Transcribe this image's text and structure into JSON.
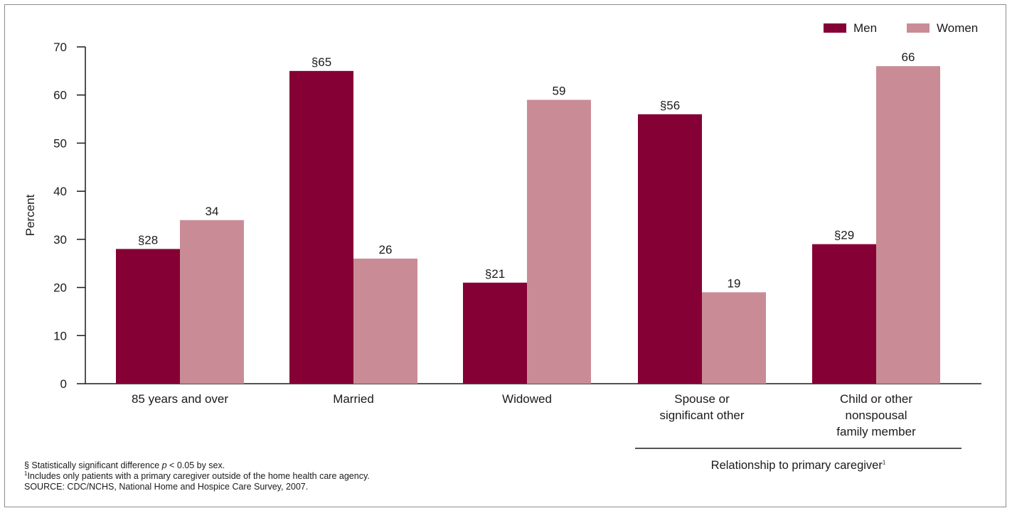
{
  "chart_data": {
    "type": "bar",
    "categories": [
      [
        "85 years and over"
      ],
      [
        "Married"
      ],
      [
        "Widowed"
      ],
      [
        "Spouse or",
        "significant other"
      ],
      [
        "Child or other",
        "nonspousal",
        "family member"
      ]
    ],
    "series": [
      {
        "name": "Men",
        "color": "#850035",
        "values": [
          28,
          65,
          21,
          56,
          29
        ],
        "labels": [
          "§28",
          "§65",
          "§21",
          "§56",
          "§29"
        ]
      },
      {
        "name": "Women",
        "color": "#c98c96",
        "values": [
          34,
          26,
          59,
          19,
          66
        ],
        "labels": [
          "34",
          "26",
          "59",
          "19",
          "66"
        ]
      }
    ],
    "ylabel": "Percent",
    "ylim": [
      0,
      70
    ],
    "yticks": [
      0,
      10,
      20,
      30,
      40,
      50,
      60,
      70
    ],
    "grid": false,
    "legend_position": "top-right",
    "group_label": "Relationship to primary caregiver",
    "group_label_sup": "1",
    "group_label_spans": [
      3,
      4
    ]
  },
  "footnotes": {
    "significance_prefix": "§ Statistically significant difference ",
    "significance_p": "p",
    "significance_suffix": " < 0.05 by sex.",
    "note1_sup": "1",
    "note1_text": "Includes only patients with a primary caregiver outside of the home health care agency.",
    "source": "SOURCE: CDC/NCHS, National Home and Hospice Care Survey, 2007."
  }
}
